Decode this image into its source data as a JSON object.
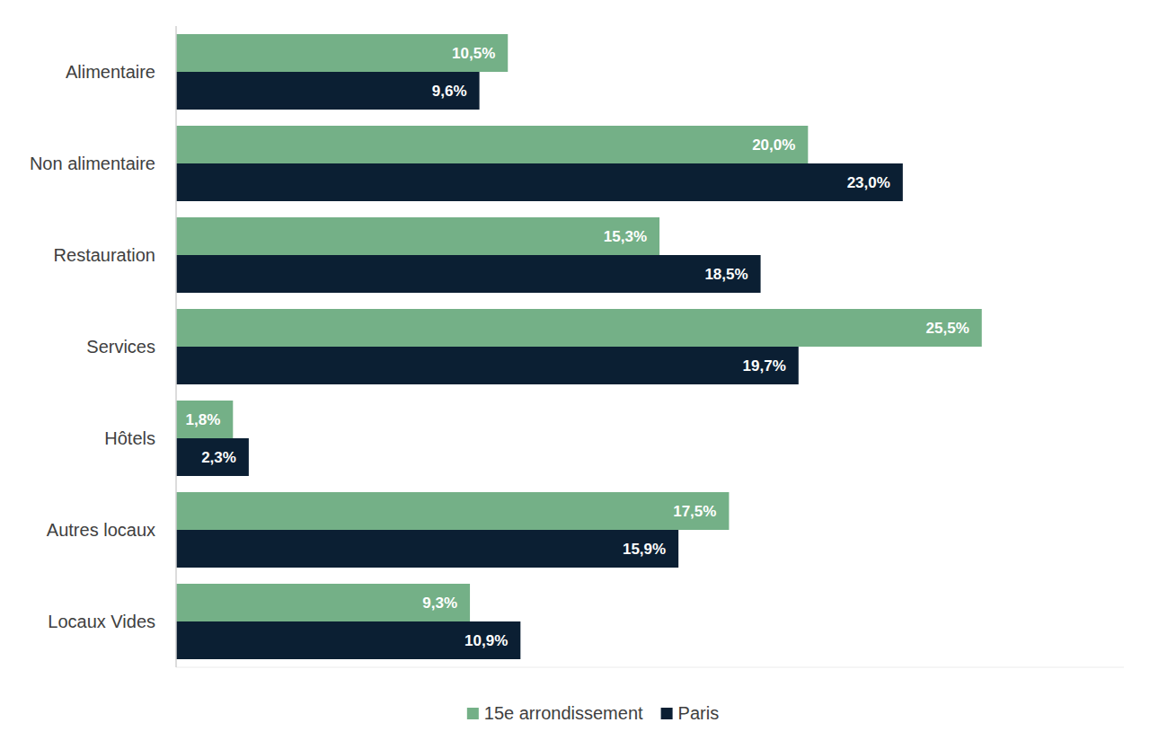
{
  "chart_data": {
    "type": "bar",
    "orientation": "horizontal",
    "categories": [
      "Alimentaire",
      "Non alimentaire",
      "Restauration",
      "Services",
      "Hôtels",
      "Autres locaux",
      "Locaux Vides"
    ],
    "series": [
      {
        "name": "15e arrondissement",
        "color": "#74b087",
        "values": [
          10.5,
          20.0,
          15.3,
          25.5,
          1.8,
          17.5,
          9.3
        ],
        "value_labels": [
          "10,5%",
          "20,0%",
          "15,3%",
          "25,5%",
          "1,8%",
          "17,5%",
          "9,3%"
        ]
      },
      {
        "name": "Paris",
        "color": "#0b1f33",
        "values": [
          9.6,
          23.0,
          18.5,
          19.7,
          2.3,
          15.9,
          10.9
        ],
        "value_labels": [
          "9,6%",
          "23,0%",
          "18,5%",
          "19,7%",
          "2,3%",
          "15,9%",
          "10,9%"
        ]
      }
    ],
    "xlim": [
      0,
      30
    ],
    "data_labels": true,
    "legend": "bottom",
    "tick_labels": "y",
    "grid": false
  }
}
